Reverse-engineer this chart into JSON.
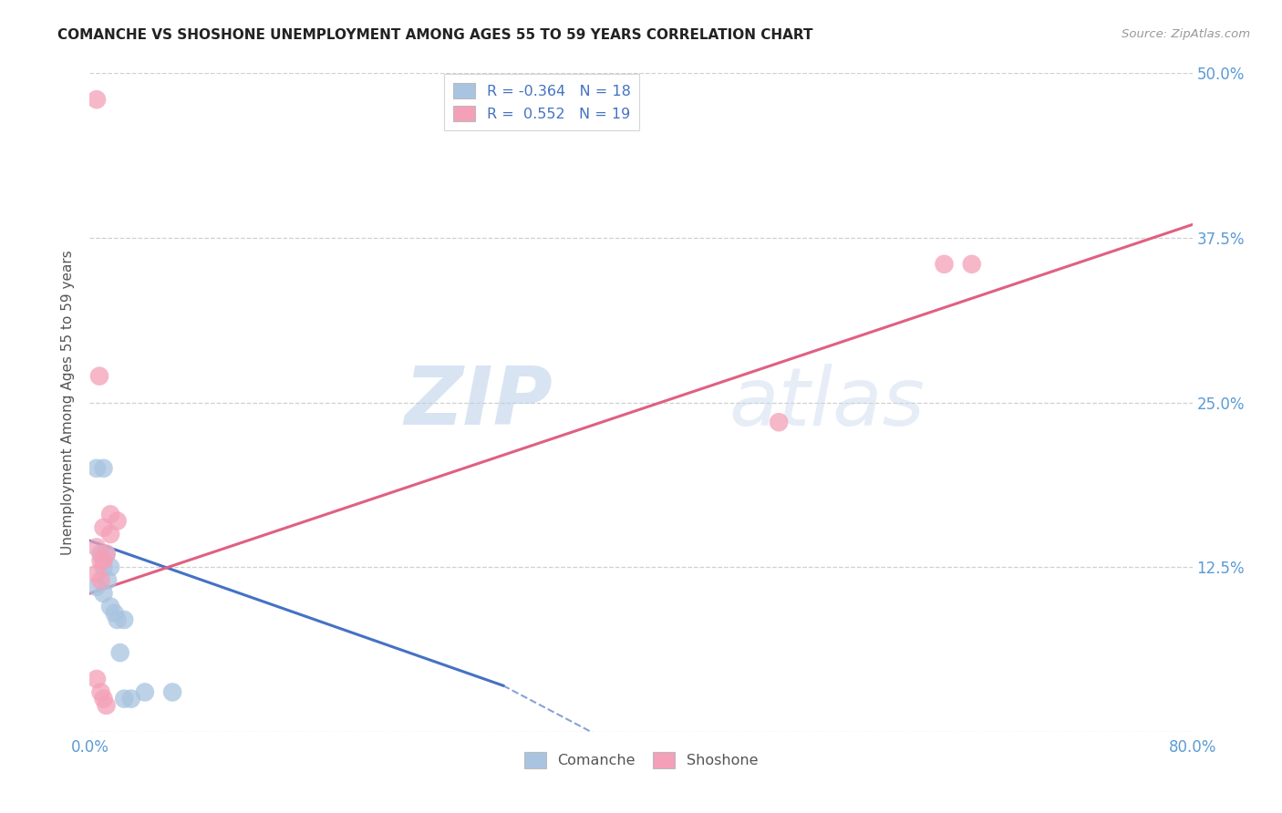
{
  "title": "COMANCHE VS SHOSHONE UNEMPLOYMENT AMONG AGES 55 TO 59 YEARS CORRELATION CHART",
  "source": "Source: ZipAtlas.com",
  "ylabel": "Unemployment Among Ages 55 to 59 years",
  "xlim": [
    0.0,
    0.8
  ],
  "ylim": [
    0.0,
    0.5
  ],
  "comanche_R": -0.364,
  "comanche_N": 18,
  "shoshone_R": 0.552,
  "shoshone_N": 19,
  "comanche_color": "#a8c4e0",
  "shoshone_color": "#f4a0b8",
  "comanche_line_color": "#4472c4",
  "shoshone_line_color": "#e06080",
  "watermark_zip": "ZIP",
  "watermark_atlas": "atlas",
  "tick_color": "#5b9bd5",
  "comanche_pts": [
    [
      0.005,
      0.2
    ],
    [
      0.01,
      0.2
    ],
    [
      0.008,
      0.135
    ],
    [
      0.012,
      0.135
    ],
    [
      0.01,
      0.125
    ],
    [
      0.015,
      0.125
    ],
    [
      0.013,
      0.115
    ],
    [
      0.005,
      0.11
    ],
    [
      0.01,
      0.105
    ],
    [
      0.015,
      0.095
    ],
    [
      0.018,
      0.09
    ],
    [
      0.02,
      0.085
    ],
    [
      0.025,
      0.085
    ],
    [
      0.022,
      0.06
    ],
    [
      0.04,
      0.03
    ],
    [
      0.06,
      0.03
    ],
    [
      0.025,
      0.025
    ],
    [
      0.03,
      0.025
    ]
  ],
  "shoshone_pts": [
    [
      0.005,
      0.48
    ],
    [
      0.007,
      0.27
    ],
    [
      0.015,
      0.165
    ],
    [
      0.02,
      0.16
    ],
    [
      0.01,
      0.155
    ],
    [
      0.015,
      0.15
    ],
    [
      0.005,
      0.14
    ],
    [
      0.012,
      0.135
    ],
    [
      0.008,
      0.13
    ],
    [
      0.01,
      0.13
    ],
    [
      0.005,
      0.12
    ],
    [
      0.008,
      0.115
    ],
    [
      0.005,
      0.04
    ],
    [
      0.008,
      0.03
    ],
    [
      0.01,
      0.025
    ],
    [
      0.012,
      0.02
    ],
    [
      0.5,
      0.235
    ],
    [
      0.62,
      0.355
    ],
    [
      0.64,
      0.355
    ]
  ],
  "comanche_line": [
    0.0,
    0.145,
    0.3,
    0.035
  ],
  "comanche_dash": [
    0.3,
    0.035,
    0.8,
    -0.24
  ],
  "shoshone_line": [
    0.0,
    0.105,
    0.8,
    0.385
  ]
}
